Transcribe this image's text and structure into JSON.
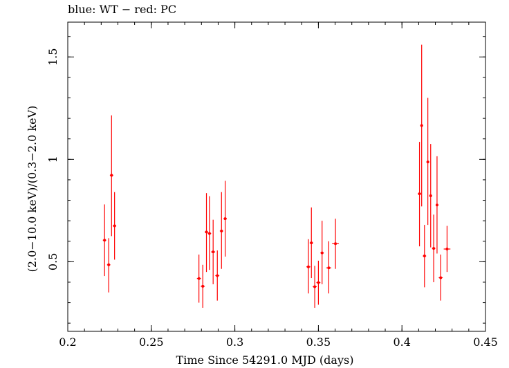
{
  "chart_data": {
    "type": "scatter",
    "title": "blue: WT − red: PC",
    "xlabel": "Time Since 54291.0 MJD (days)",
    "ylabel": "(2.0−10.0 keV)/(0.3−2.0 keV)",
    "xlim": [
      0.2,
      0.45
    ],
    "ylim": [
      0.16,
      1.67
    ],
    "x_ticks": [
      0.2,
      0.25,
      0.3,
      0.35,
      0.4,
      0.45
    ],
    "x_tick_labels": [
      "0.2",
      "0.25",
      "0.3",
      "0.35",
      "0.4",
      "0.45"
    ],
    "y_ticks": [
      0.5,
      1.0,
      1.5
    ],
    "y_tick_labels": [
      "0.5",
      "1",
      "1.5"
    ],
    "grid": false,
    "series": [
      {
        "name": "PC",
        "color": "#ff0000",
        "points": [
          {
            "x": 0.222,
            "y": 0.605,
            "ylo": 0.43,
            "yhi": 0.78,
            "xerr": 0.001
          },
          {
            "x": 0.2245,
            "y": 0.485,
            "ylo": 0.35,
            "yhi": 0.615,
            "xerr": 0.001
          },
          {
            "x": 0.2262,
            "y": 0.922,
            "ylo": 0.625,
            "yhi": 1.215,
            "xerr": 0.001
          },
          {
            "x": 0.228,
            "y": 0.675,
            "ylo": 0.51,
            "yhi": 0.84,
            "xerr": 0.001
          },
          {
            "x": 0.2785,
            "y": 0.418,
            "ylo": 0.3,
            "yhi": 0.535,
            "xerr": 0.0012
          },
          {
            "x": 0.2808,
            "y": 0.38,
            "ylo": 0.275,
            "yhi": 0.485,
            "xerr": 0.0012
          },
          {
            "x": 0.283,
            "y": 0.645,
            "ylo": 0.45,
            "yhi": 0.835,
            "xerr": 0.001
          },
          {
            "x": 0.2848,
            "y": 0.638,
            "ylo": 0.46,
            "yhi": 0.82,
            "xerr": 0.001
          },
          {
            "x": 0.287,
            "y": 0.548,
            "ylo": 0.39,
            "yhi": 0.705,
            "xerr": 0.0012
          },
          {
            "x": 0.2895,
            "y": 0.432,
            "ylo": 0.31,
            "yhi": 0.555,
            "xerr": 0.0012
          },
          {
            "x": 0.292,
            "y": 0.65,
            "ylo": 0.465,
            "yhi": 0.84,
            "xerr": 0.001
          },
          {
            "x": 0.2942,
            "y": 0.71,
            "ylo": 0.525,
            "yhi": 0.895,
            "xerr": 0.001
          },
          {
            "x": 0.344,
            "y": 0.475,
            "ylo": 0.345,
            "yhi": 0.61,
            "xerr": 0.0012
          },
          {
            "x": 0.3458,
            "y": 0.592,
            "ylo": 0.42,
            "yhi": 0.765,
            "xerr": 0.001
          },
          {
            "x": 0.3478,
            "y": 0.378,
            "ylo": 0.275,
            "yhi": 0.48,
            "xerr": 0.0012
          },
          {
            "x": 0.35,
            "y": 0.398,
            "ylo": 0.29,
            "yhi": 0.505,
            "xerr": 0.0012
          },
          {
            "x": 0.3522,
            "y": 0.543,
            "ylo": 0.39,
            "yhi": 0.7,
            "xerr": 0.001
          },
          {
            "x": 0.3562,
            "y": 0.47,
            "ylo": 0.345,
            "yhi": 0.6,
            "xerr": 0.0015
          },
          {
            "x": 0.3602,
            "y": 0.588,
            "ylo": 0.465,
            "yhi": 0.71,
            "xerr": 0.002
          },
          {
            "x": 0.4105,
            "y": 0.832,
            "ylo": 0.575,
            "yhi": 1.085,
            "xerr": 0.001
          },
          {
            "x": 0.4118,
            "y": 1.165,
            "ylo": 0.77,
            "yhi": 1.56,
            "xerr": 0.0008
          },
          {
            "x": 0.4135,
            "y": 0.528,
            "ylo": 0.375,
            "yhi": 0.68,
            "xerr": 0.001
          },
          {
            "x": 0.4155,
            "y": 0.987,
            "ylo": 0.68,
            "yhi": 1.3,
            "xerr": 0.0008
          },
          {
            "x": 0.4172,
            "y": 0.822,
            "ylo": 0.57,
            "yhi": 1.075,
            "xerr": 0.0008
          },
          {
            "x": 0.419,
            "y": 0.565,
            "ylo": 0.4,
            "yhi": 0.73,
            "xerr": 0.001
          },
          {
            "x": 0.421,
            "y": 0.777,
            "ylo": 0.54,
            "yhi": 1.015,
            "xerr": 0.0008
          },
          {
            "x": 0.4232,
            "y": 0.422,
            "ylo": 0.31,
            "yhi": 0.535,
            "xerr": 0.0012
          },
          {
            "x": 0.427,
            "y": 0.562,
            "ylo": 0.45,
            "yhi": 0.675,
            "xerr": 0.002
          }
        ]
      }
    ]
  }
}
